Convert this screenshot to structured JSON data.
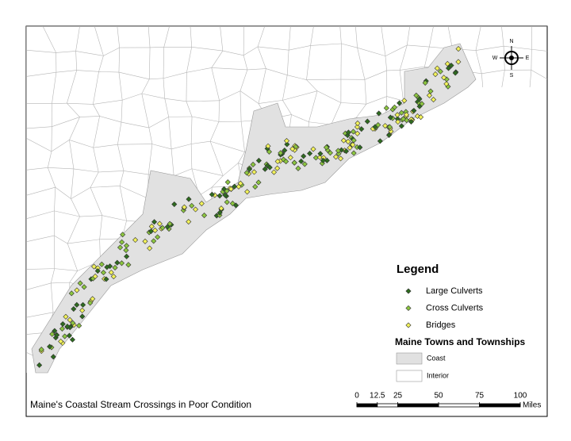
{
  "map": {
    "title": "Maine's Coastal Stream Crossings in Poor Condition",
    "compass": {
      "n": "N",
      "s": "S",
      "e": "E",
      "w": "W"
    },
    "legend": {
      "title": "Legend",
      "items": [
        {
          "label": "Large Culverts",
          "color": "#2e6b1f"
        },
        {
          "label": "Cross Culverts",
          "color": "#8cc63f"
        },
        {
          "label": "Bridges",
          "color": "#f2f25a"
        }
      ],
      "towns_title": "Maine Towns and Townships",
      "towns": [
        {
          "label": "Coast",
          "color": "#e1e1e1"
        },
        {
          "label": "Interior",
          "color": "#ffffff"
        }
      ]
    },
    "scale_bar": {
      "ticks": [
        0,
        12.5,
        25,
        50,
        75,
        100
      ],
      "unit": "Miles"
    }
  }
}
